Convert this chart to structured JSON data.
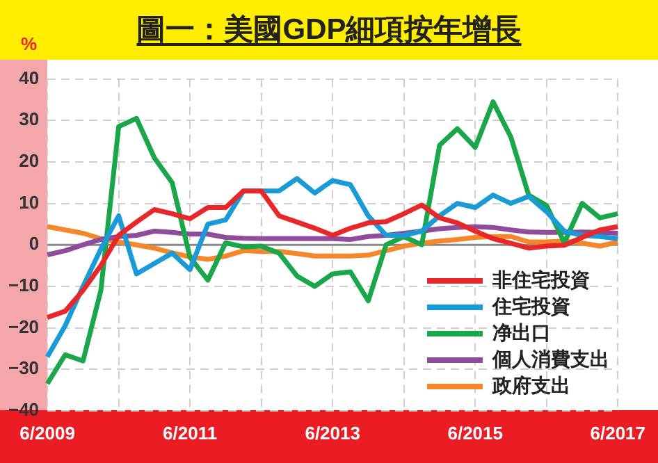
{
  "chart_data": {
    "type": "line",
    "title": "圖一：美國GDP細項按年增長",
    "ylabel": "%",
    "categories": [
      "6/2009",
      null,
      null,
      null,
      null,
      null,
      null,
      null,
      "6/2011",
      null,
      null,
      null,
      null,
      null,
      null,
      null,
      "6/2013",
      null,
      null,
      null,
      null,
      null,
      null,
      null,
      "6/2015",
      null,
      null,
      null,
      null,
      null,
      null,
      null,
      "6/2017"
    ],
    "series": [
      {
        "name": "非住宅投資",
        "color": "#e8272a",
        "values": [
          -17.5,
          -16,
          -11,
          -5,
          2.3,
          5.5,
          8.5,
          7.5,
          6.3,
          9,
          9,
          13,
          13,
          7,
          5.5,
          4,
          2.3,
          4,
          5.3,
          5.6,
          7.5,
          9.6,
          6.5,
          5.3,
          3.3,
          1.5,
          0.4,
          -0.8,
          -0.3,
          -0.1,
          1.8,
          3.6,
          4.4
        ]
      },
      {
        "name": "住宅投資",
        "color": "#1a9ad6",
        "values": [
          -27,
          -19.5,
          -10,
          -1,
          7,
          -7,
          -4.5,
          -2,
          -6,
          5,
          6,
          13,
          13,
          13,
          16,
          12.5,
          15.5,
          14.5,
          7,
          2.3,
          2.3,
          3.3,
          7,
          10,
          9,
          12,
          10,
          11.7,
          8,
          3.3,
          2.3,
          2,
          1.5
        ]
      },
      {
        "name": "净出口",
        "color": "#1aa64a",
        "values": [
          -33.5,
          -26.5,
          -28,
          -11,
          28.5,
          30.5,
          21,
          15,
          -3,
          -8.5,
          0.5,
          -0.5,
          -0.3,
          -2,
          -7.5,
          -10,
          -7,
          -6.5,
          -13.5,
          0,
          2,
          0,
          24,
          28,
          23.5,
          34.5,
          26,
          12,
          9.5,
          0.5,
          10,
          6.5,
          7.5
        ]
      },
      {
        "name": "個人消費支出",
        "color": "#8e4c9a",
        "values": [
          -2.4,
          -1.4,
          0,
          1.3,
          2,
          2.3,
          3.3,
          3,
          2.6,
          2.6,
          1.8,
          1.6,
          1.5,
          1.5,
          1.5,
          1.5,
          1.5,
          1.3,
          2,
          2.3,
          2.8,
          3.3,
          3.9,
          4.2,
          4.4,
          4.2,
          3.6,
          3.1,
          3,
          3,
          3.1,
          3,
          2.8
        ]
      },
      {
        "name": "政府支出",
        "color": "#f5862a",
        "values": [
          4.4,
          3.6,
          2.8,
          1.5,
          0.7,
          0,
          -0.8,
          -1.9,
          -2.9,
          -3.5,
          -2.7,
          -1.4,
          -1.6,
          -1.6,
          -2.1,
          -2.7,
          -2.7,
          -2.7,
          -2.5,
          -1.4,
          -0.3,
          0.4,
          0.9,
          1.3,
          1.8,
          2,
          2,
          0.7,
          0.7,
          0.9,
          0.4,
          -0.3,
          0.7
        ]
      }
    ],
    "ylim": [
      -40,
      40
    ],
    "yticks": [
      -40,
      -30,
      -20,
      -10,
      0,
      10,
      20,
      30,
      40
    ],
    "ref_lines": [
      {
        "axis": "y",
        "value": 0,
        "color": "#8a8a8a"
      }
    ],
    "grid": true,
    "legend": "bottom right",
    "marker": "none",
    "line_style": "solid"
  }
}
